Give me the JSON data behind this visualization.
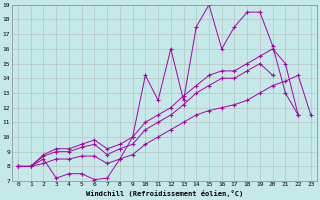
{
  "xlabel": "Windchill (Refroidissement éolien,°C)",
  "bg_color": "#c5e8e8",
  "grid_color": "#b0b0b0",
  "line_color": "#aa00aa",
  "xlim": [
    -0.5,
    23.5
  ],
  "ylim": [
    7,
    19
  ],
  "xtick_positions": [
    0,
    1,
    2,
    3,
    4,
    5,
    6,
    7,
    8,
    9,
    10,
    11,
    12,
    13,
    14,
    15,
    16,
    17,
    18,
    19,
    20,
    21,
    22,
    23
  ],
  "xtick_labels": [
    "0",
    "1",
    "2",
    "3",
    "4",
    "5",
    "6",
    "7",
    "8",
    "9",
    "10",
    "11",
    "12",
    "13",
    "14",
    "15",
    "16",
    "17",
    "18",
    "19",
    "20",
    "21",
    "22",
    "23"
  ],
  "ytick_positions": [
    7,
    8,
    9,
    10,
    11,
    12,
    13,
    14,
    15,
    16,
    17,
    18,
    19
  ],
  "ytick_labels": [
    "7",
    "8",
    "9",
    "10",
    "11",
    "12",
    "13",
    "14",
    "15",
    "16",
    "17",
    "18",
    "19"
  ],
  "lines": [
    {
      "x": [
        0,
        1,
        2,
        3,
        4,
        5,
        6,
        7,
        8,
        9,
        10,
        11,
        12,
        13,
        14,
        15,
        16,
        17,
        18,
        19,
        20,
        21,
        22
      ],
      "y": [
        8.0,
        8.0,
        8.5,
        7.2,
        7.5,
        7.5,
        7.1,
        7.2,
        8.5,
        10.0,
        14.2,
        12.5,
        16.0,
        12.5,
        17.5,
        19.0,
        16.0,
        17.5,
        18.5,
        18.5,
        16.2,
        13.0,
        11.5
      ]
    },
    {
      "x": [
        0,
        1,
        2,
        3,
        4,
        5,
        6,
        7,
        8,
        9,
        10,
        11,
        12,
        13,
        14,
        15,
        16,
        17,
        18,
        19,
        20,
        21,
        22
      ],
      "y": [
        8.0,
        8.0,
        8.8,
        9.2,
        9.2,
        9.5,
        9.8,
        9.2,
        9.5,
        10.0,
        11.0,
        11.5,
        12.0,
        12.8,
        13.5,
        14.2,
        14.5,
        14.5,
        15.0,
        15.5,
        16.0,
        15.0,
        11.5
      ]
    },
    {
      "x": [
        0,
        1,
        2,
        3,
        4,
        5,
        6,
        7,
        8,
        9,
        10,
        11,
        12,
        13,
        14,
        15,
        16,
        17,
        18,
        19,
        20
      ],
      "y": [
        8.0,
        8.0,
        8.7,
        9.0,
        9.0,
        9.3,
        9.5,
        8.8,
        9.2,
        9.5,
        10.5,
        11.0,
        11.5,
        12.2,
        13.0,
        13.5,
        14.0,
        14.0,
        14.5,
        15.0,
        14.2
      ]
    },
    {
      "x": [
        0,
        1,
        2,
        3,
        4,
        5,
        6,
        7,
        8,
        9,
        10,
        11,
        12,
        13,
        14,
        15,
        16,
        17,
        18,
        19,
        20,
        21,
        22,
        23
      ],
      "y": [
        8.0,
        8.0,
        8.2,
        8.5,
        8.5,
        8.7,
        8.7,
        8.2,
        8.5,
        8.8,
        9.5,
        10.0,
        10.5,
        11.0,
        11.5,
        11.8,
        12.0,
        12.2,
        12.5,
        13.0,
        13.5,
        13.8,
        14.2,
        11.5
      ]
    }
  ]
}
